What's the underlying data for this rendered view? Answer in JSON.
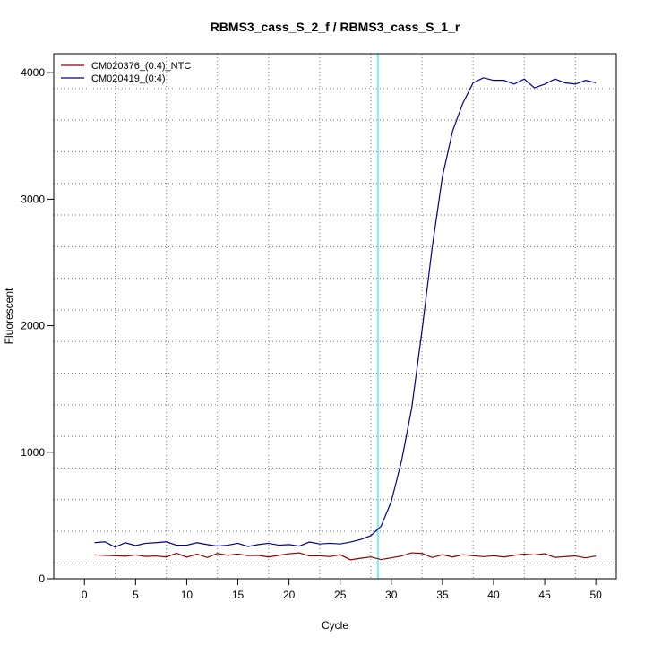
{
  "chart_data": {
    "type": "line",
    "title": "RBMS3_cass_S_2_f / RBMS3_cass_S_1_r",
    "xlabel": "Cycle",
    "ylabel": "Fluorescent",
    "xlim": [
      -3,
      52
    ],
    "ylim": [
      0,
      4150
    ],
    "x_ticks": [
      0,
      5,
      10,
      15,
      20,
      25,
      30,
      35,
      40,
      45,
      50
    ],
    "y_ticks": [
      0,
      1000,
      2000,
      3000,
      4000
    ],
    "x_grid": [
      3,
      8,
      13,
      18,
      23,
      28,
      33,
      38,
      43,
      48
    ],
    "y_grid": [
      125,
      375,
      625,
      875,
      1125,
      1375,
      1625,
      1875,
      2125,
      2375,
      2625,
      2875,
      3125,
      3375,
      3625,
      3875
    ],
    "grid": true,
    "threshold_cycle": 28.7,
    "legend_position": "top-left",
    "x": [
      1,
      2,
      3,
      4,
      5,
      6,
      7,
      8,
      9,
      10,
      11,
      12,
      13,
      14,
      15,
      16,
      17,
      18,
      19,
      20,
      21,
      22,
      23,
      24,
      25,
      26,
      27,
      28,
      29,
      30,
      31,
      32,
      33,
      34,
      35,
      36,
      37,
      38,
      39,
      40,
      41,
      42,
      43,
      44,
      45,
      46,
      47,
      48,
      49,
      50
    ],
    "series": [
      {
        "name": "CM020376_(0:4)_NTC",
        "color": "#8b0000",
        "values": [
          188,
          185,
          182,
          178,
          188,
          176,
          180,
          172,
          202,
          170,
          195,
          168,
          200,
          185,
          195,
          183,
          185,
          172,
          185,
          198,
          205,
          180,
          182,
          175,
          190,
          150,
          162,
          172,
          152,
          165,
          180,
          205,
          200,
          168,
          190,
          172,
          190,
          182,
          175,
          182,
          172,
          185,
          195,
          188,
          198,
          168,
          175,
          180,
          165,
          180
        ]
      },
      {
        "name": "CM020419_(0:4)",
        "color": "#00008b",
        "values": [
          285,
          292,
          250,
          285,
          262,
          280,
          285,
          292,
          265,
          265,
          285,
          270,
          258,
          265,
          280,
          255,
          270,
          280,
          265,
          270,
          258,
          290,
          275,
          280,
          275,
          290,
          310,
          340,
          415,
          610,
          930,
          1350,
          1960,
          2620,
          3180,
          3540,
          3760,
          3920,
          3960,
          3940,
          3940,
          3910,
          3950,
          3880,
          3910,
          3950,
          3920,
          3910,
          3940,
          3920
        ]
      }
    ]
  }
}
